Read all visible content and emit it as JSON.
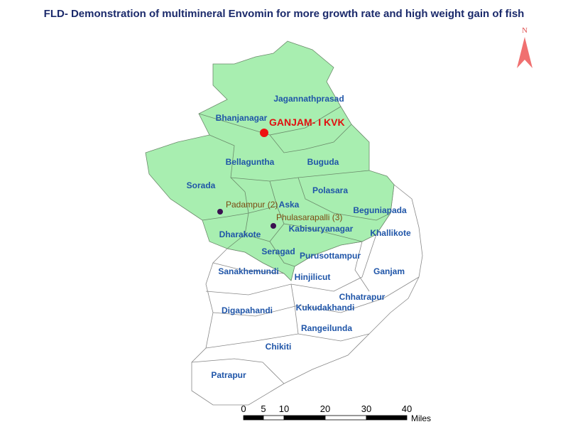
{
  "header": {
    "title": "FLD- Demonstration of multimineral Envomin for more growth rate and high weight gain of fish"
  },
  "north_arrow": {
    "label": "N"
  },
  "kvk": {
    "label": "GANJAM- I KVK"
  },
  "districts": [
    "Jagannathprasad",
    "Bhanjanagar",
    "Bellaguntha",
    "Buguda",
    "Sorada",
    "Polasara",
    "Aska",
    "Beguniapada",
    "Kabisuryanagar",
    "Khallikote",
    "Dharakote",
    "Seragad",
    "Purusottampur",
    "Sanakhemundi",
    "Hinjilicut",
    "Ganjam",
    "Chhatrapur",
    "Digapahandi",
    "Kukudakhandi",
    "Rangeilunda",
    "Chikiti",
    "Patrapur"
  ],
  "sites": [
    "Padampur (2)",
    "Phulasarapalli (3)"
  ],
  "scale_bar": {
    "labels": [
      "0",
      "5",
      "10",
      "20",
      "30",
      "40"
    ],
    "unit": "Miles"
  }
}
